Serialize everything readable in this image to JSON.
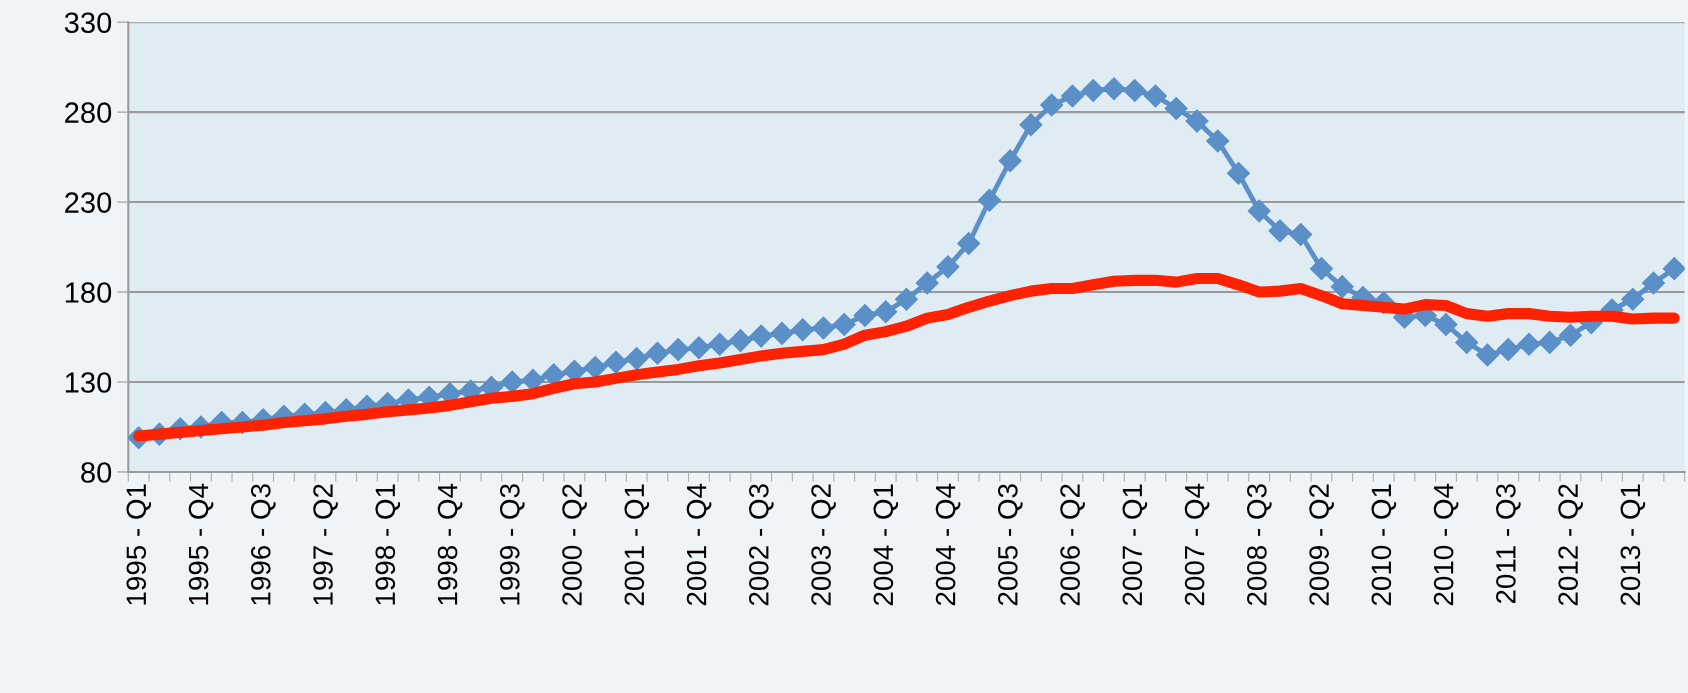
{
  "chart_data": {
    "type": "line",
    "categories": [
      "1995 - Q1",
      null,
      null,
      "1995 - Q4",
      null,
      null,
      "1996 - Q3",
      null,
      null,
      "1997 - Q2",
      null,
      null,
      "1998 - Q1",
      null,
      null,
      "1998 - Q4",
      null,
      null,
      "1999 - Q3",
      null,
      null,
      "2000 - Q2",
      null,
      null,
      "2001 - Q1",
      null,
      null,
      "2001 - Q4",
      null,
      null,
      "2002 - Q3",
      null,
      null,
      "2003 - Q2",
      null,
      null,
      "2004 - Q1",
      null,
      null,
      "2004 - Q4",
      null,
      null,
      "2005 - Q3",
      null,
      null,
      "2006 - Q2",
      null,
      null,
      "2007 - Q1",
      null,
      null,
      "2007 - Q4",
      null,
      null,
      "2008 - Q3",
      null,
      null,
      "2009 - Q2",
      null,
      null,
      "2010 - Q1",
      null,
      null,
      "2010 - Q4",
      null,
      null,
      "2011 - Q3",
      null,
      null,
      "2012 - Q2",
      null,
      null,
      "2013 - Q1",
      null,
      null
    ],
    "series": [
      {
        "color": "#5b8fc7",
        "marker": "diamond",
        "values": [
          99,
          101,
          104,
          105,
          107.5,
          107.5,
          109,
          111,
          112,
          113,
          114.5,
          116.5,
          118,
          120,
          121.5,
          123.5,
          125,
          127,
          130,
          131,
          134,
          136,
          138,
          141,
          143,
          146,
          148,
          149,
          151,
          153,
          155.5,
          157,
          159,
          160,
          162,
          167,
          169,
          176,
          185,
          194,
          207,
          231,
          253,
          273,
          284,
          289,
          292,
          293,
          292,
          289,
          282,
          275,
          264,
          246,
          225,
          214,
          212,
          193,
          183,
          177,
          174,
          166,
          167,
          162,
          152,
          145,
          148,
          151,
          152,
          156,
          163,
          170,
          176,
          185,
          193
        ]
      },
      {
        "color": "#ff2200",
        "marker": "none",
        "values": [
          100,
          101,
          102,
          103,
          104,
          105,
          106,
          107.5,
          108.5,
          109.5,
          111,
          112,
          113.5,
          114.5,
          115.5,
          117,
          119,
          121,
          122,
          123.5,
          126.5,
          129,
          130,
          132,
          134,
          135.5,
          137,
          139,
          140.5,
          142.5,
          144.5,
          146,
          147,
          148,
          151,
          156,
          158,
          161,
          165.5,
          167.5,
          171.5,
          175,
          178,
          180.5,
          182,
          182,
          184,
          186,
          186.5,
          186.5,
          185.5,
          187.5,
          187.5,
          184,
          180,
          180.5,
          182,
          178,
          173.5,
          172.5,
          171.5,
          170.5,
          173,
          172.5,
          168,
          166.5,
          168,
          168,
          166.5,
          166,
          166.5,
          166.5,
          165,
          165.5,
          165.5
        ]
      }
    ],
    "ylim": [
      80,
      330
    ],
    "yticks": [
      80,
      130,
      180,
      230,
      280,
      330
    ],
    "grid": "y",
    "line_style": "solid"
  }
}
